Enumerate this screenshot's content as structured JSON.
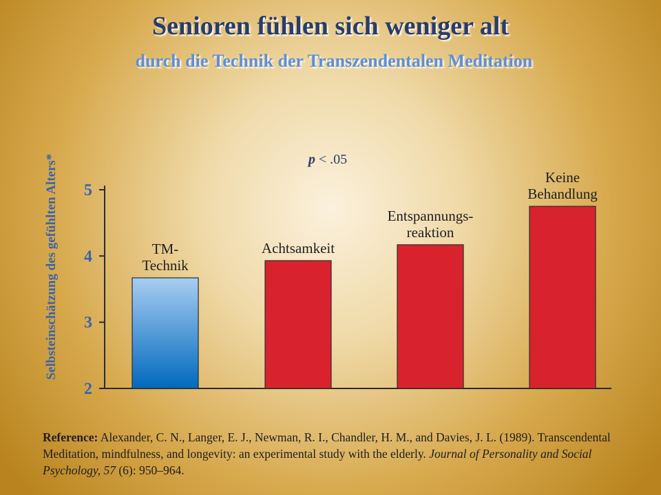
{
  "title": "Senioren fühlen sich weniger alt",
  "subtitle": "durch die Technik der Transzendentalen Meditation",
  "significance": {
    "p_symbol": "p",
    "rest": " < .05"
  },
  "chart_data": {
    "type": "bar",
    "ylabel": "Selbsteinschätzung des gefühlten Alters*",
    "ylim": [
      2,
      5
    ],
    "yticks": [
      "2",
      "3",
      "4",
      "5"
    ],
    "categories": [
      [
        "TM-",
        "Technik"
      ],
      [
        "Achtsamkeit"
      ],
      [
        "Entspannungs-",
        "reaktion"
      ],
      [
        "Keine",
        "Behandlung"
      ]
    ],
    "values": [
      3.67,
      3.93,
      4.17,
      4.75
    ],
    "colors": [
      "#1a73c2",
      "#d8232e",
      "#d8232e",
      "#d8232e"
    ]
  },
  "reference": {
    "label": "Reference:",
    "authors": " Alexander, C. N., Langer, E. J., Newman, R. I., Chandler, H. M., and Davies, J. L. (1989). Transcendental Meditation, mindfulness, and longevity: an experimental study with the elderly. ",
    "journal": "Journal of Personality and Social Psychology, 57",
    "pages": " (6): 950–964."
  }
}
